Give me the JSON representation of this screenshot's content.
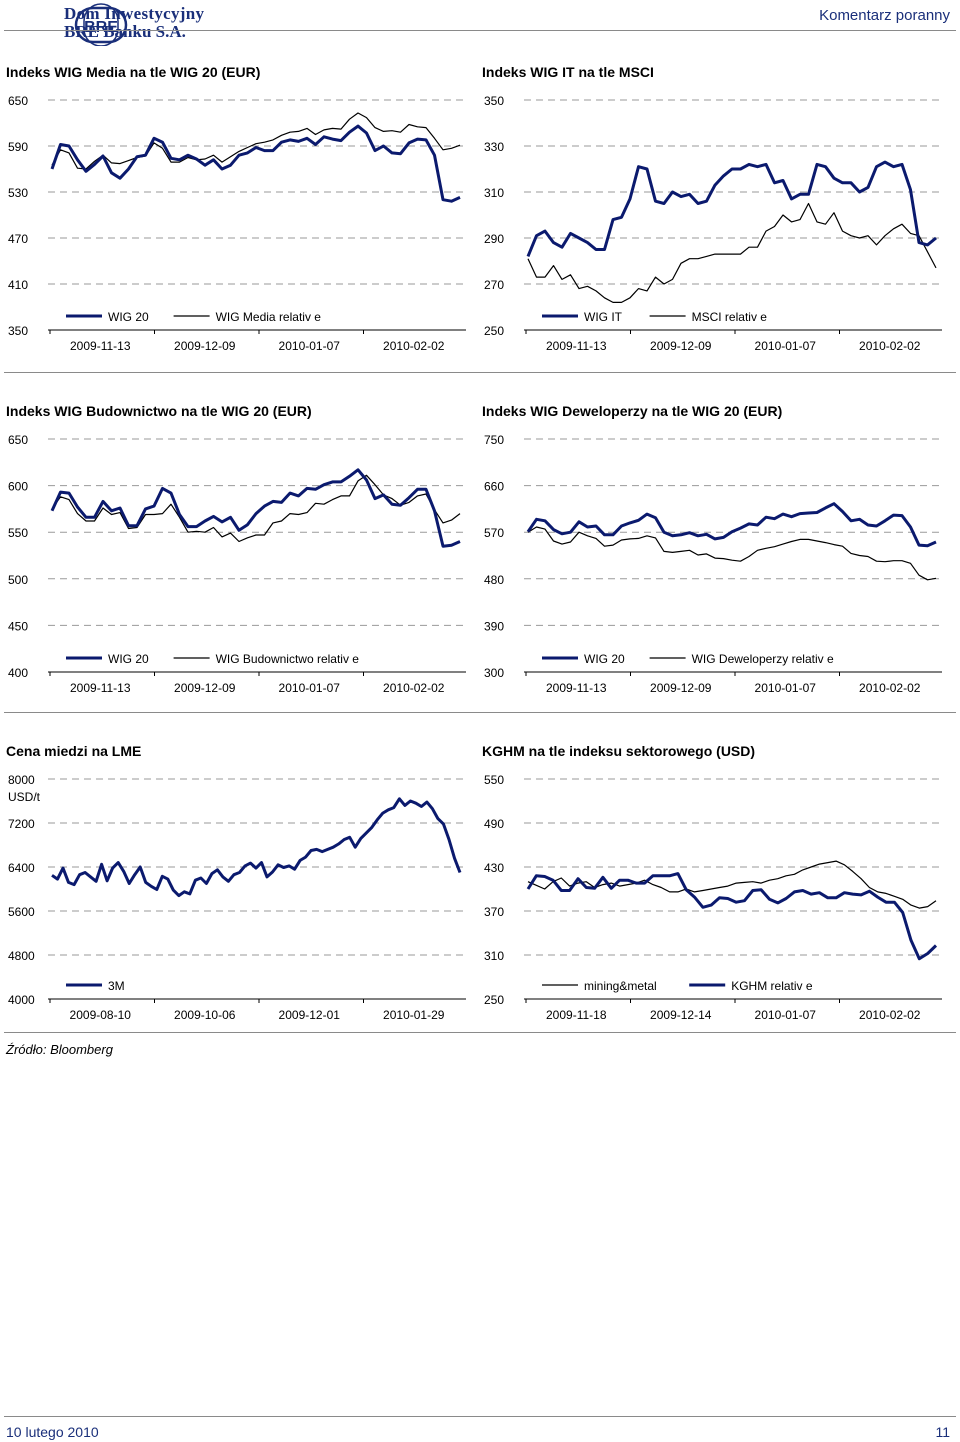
{
  "header": {
    "logo_text": "BRE",
    "brand_line1": "Dom Inwestycyjny",
    "brand_line2": "BRE Banku S.A.",
    "doc_type": "Komentarz poranny"
  },
  "colors": {
    "primary": "#0b1a6e",
    "secondary": "#000000",
    "brand": "#1a2f7a",
    "grid": "#9a9a9a"
  },
  "charts": [
    {
      "id": "wig-media",
      "title": "Indeks WIG Media na tle WIG 20 (EUR)",
      "type": "line",
      "y_ticks": [
        "650",
        "590",
        "530",
        "470",
        "410",
        "350"
      ],
      "ylim": [
        350,
        650
      ],
      "x_ticks": [
        "2009-11-13",
        "2009-12-09",
        "2010-01-07",
        "2010-02-02"
      ],
      "unit": "",
      "series": [
        {
          "name": "WIG 20",
          "style": "primary",
          "values": [
            560,
            592,
            590,
            572,
            557,
            566,
            577,
            555,
            548,
            560,
            576,
            578,
            600,
            595,
            574,
            572,
            578,
            573,
            565,
            572,
            560,
            565,
            578,
            581,
            588,
            584,
            584,
            595,
            598,
            596,
            600,
            592,
            602,
            599,
            597,
            608,
            616,
            607,
            584,
            590,
            581,
            580,
            594,
            599,
            598,
            578,
            520,
            518,
            523
          ]
        },
        {
          "name": "WIG Media relativ e",
          "style": "secondary",
          "values": [
            565,
            585,
            581,
            561,
            560,
            570,
            578,
            568,
            567,
            571,
            575,
            577,
            594,
            587,
            569,
            569,
            575,
            572,
            573,
            578,
            569,
            576,
            583,
            588,
            593,
            595,
            598,
            604,
            608,
            609,
            613,
            605,
            611,
            613,
            612,
            625,
            633,
            627,
            614,
            609,
            610,
            608,
            618,
            615,
            614,
            600,
            585,
            587,
            591
          ]
        }
      ]
    },
    {
      "id": "wig-it",
      "title": "Indeks WIG IT na tle MSCI",
      "type": "line",
      "y_ticks": [
        "350",
        "330",
        "310",
        "290",
        "270",
        "250"
      ],
      "ylim": [
        250,
        350
      ],
      "x_ticks": [
        "2009-11-13",
        "2009-12-09",
        "2010-01-07",
        "2010-02-02"
      ],
      "unit": "",
      "series": [
        {
          "name": "WIG IT",
          "style": "primary",
          "values": [
            282,
            291,
            293,
            288,
            286,
            292,
            290,
            288,
            285,
            285,
            298,
            299,
            307,
            321,
            320,
            306,
            305,
            310,
            308,
            309,
            305,
            306,
            313,
            317,
            320,
            320,
            322,
            321,
            322,
            314,
            315,
            307,
            309,
            309,
            322,
            321,
            316,
            314,
            314,
            310,
            312,
            321,
            323,
            321,
            322,
            311,
            288,
            287,
            290
          ]
        },
        {
          "name": "MSCI relativ e",
          "style": "secondary",
          "values": [
            281,
            273,
            273,
            278,
            272,
            274,
            268,
            269,
            267,
            264,
            262,
            262,
            264,
            268,
            267,
            273,
            270,
            272,
            279,
            281,
            281,
            282,
            283,
            283,
            283,
            283,
            286,
            286,
            293,
            295,
            300,
            297,
            298,
            305,
            297,
            296,
            301,
            293,
            291,
            290,
            291,
            287,
            291,
            294,
            296,
            292,
            291,
            284,
            277
          ]
        }
      ]
    },
    {
      "id": "wig-budownictwo",
      "title": "Indeks WIG Budownictwo na tle WIG 20 (EUR)",
      "type": "line",
      "y_ticks": [
        "650",
        "600",
        "550",
        "500",
        "450",
        "400"
      ],
      "ylim": [
        400,
        650
      ],
      "x_ticks": [
        "2009-11-13",
        "2009-12-09",
        "2010-01-07",
        "2010-02-02"
      ],
      "unit": "",
      "series": [
        {
          "name": "WIG 20",
          "style": "primary",
          "values": [
            573,
            593,
            592,
            577,
            566,
            566,
            583,
            573,
            576,
            557,
            557,
            575,
            578,
            597,
            592,
            569,
            556,
            556,
            562,
            567,
            561,
            566,
            552,
            558,
            570,
            578,
            583,
            582,
            592,
            589,
            597,
            596,
            601,
            604,
            604,
            610,
            617,
            606,
            586,
            590,
            580,
            579,
            587,
            596,
            596,
            573,
            535,
            536,
            540
          ]
        },
        {
          "name": "WIG Budownictwo relativ e",
          "style": "secondary",
          "values": [
            575,
            588,
            585,
            570,
            562,
            562,
            576,
            569,
            571,
            554,
            555,
            569,
            569,
            570,
            580,
            566,
            550,
            551,
            550,
            555,
            545,
            549,
            540,
            544,
            547,
            547,
            560,
            562,
            570,
            569,
            571,
            581,
            580,
            585,
            589,
            589,
            605,
            611,
            601,
            590,
            586,
            579,
            582,
            589,
            591,
            574,
            560,
            563,
            570
          ]
        }
      ]
    },
    {
      "id": "wig-deweloperzy",
      "title": "Indeks WIG Deweloperzy na tle WIG 20 (EUR)",
      "type": "line",
      "y_ticks": [
        "750",
        "660",
        "570",
        "480",
        "390",
        "300"
      ],
      "ylim": [
        300,
        750
      ],
      "x_ticks": [
        "2009-11-13",
        "2009-12-09",
        "2010-01-07",
        "2010-02-02"
      ],
      "unit": "",
      "series": [
        {
          "name": "WIG 20",
          "style": "primary",
          "values": [
            571,
            595,
            592,
            575,
            567,
            570,
            590,
            580,
            582,
            565,
            565,
            582,
            588,
            593,
            605,
            598,
            570,
            563,
            565,
            569,
            563,
            566,
            557,
            560,
            571,
            578,
            586,
            584,
            599,
            596,
            605,
            600,
            606,
            607,
            608,
            617,
            625,
            610,
            592,
            595,
            584,
            582,
            592,
            603,
            602,
            580,
            545,
            544,
            551
          ]
        },
        {
          "name": "WIG Deweloperzy relativ e",
          "style": "secondary",
          "values": [
            570,
            580,
            576,
            553,
            547,
            551,
            570,
            563,
            558,
            543,
            545,
            555,
            557,
            558,
            563,
            559,
            533,
            531,
            533,
            535,
            526,
            528,
            520,
            519,
            516,
            514,
            523,
            535,
            539,
            542,
            547,
            552,
            556,
            556,
            553,
            550,
            546,
            543,
            529,
            525,
            523,
            514,
            513,
            515,
            515,
            510,
            487,
            478,
            481
          ]
        }
      ]
    },
    {
      "id": "cena-miedzi",
      "title": "Cena miedzi na LME",
      "type": "line",
      "y_ticks": [
        "8000",
        "7200",
        "6400",
        "5600",
        "4800",
        "4000"
      ],
      "ylim": [
        4000,
        8000
      ],
      "x_ticks": [
        "2009-08-10",
        "2009-10-06",
        "2009-12-01",
        "2010-01-29"
      ],
      "unit": "USD/t",
      "series": [
        {
          "name": "3M",
          "style": "primary",
          "values": [
            6250,
            6180,
            6380,
            6120,
            6080,
            6260,
            6300,
            6220,
            6140,
            6450,
            6150,
            6380,
            6480,
            6320,
            6100,
            6260,
            6400,
            6120,
            6050,
            5990,
            6230,
            6180,
            5980,
            5880,
            5950,
            5910,
            6160,
            6200,
            6100,
            6280,
            6350,
            6220,
            6140,
            6260,
            6300,
            6420,
            6470,
            6380,
            6480,
            6220,
            6310,
            6440,
            6390,
            6420,
            6360,
            6520,
            6580,
            6700,
            6720,
            6680,
            6720,
            6760,
            6820,
            6900,
            6940,
            6760,
            6920,
            7020,
            7120,
            7260,
            7380,
            7440,
            7480,
            7640,
            7520,
            7600,
            7560,
            7500,
            7580,
            7460,
            7280,
            7180,
            6900,
            6560,
            6300
          ]
        }
      ]
    },
    {
      "id": "kghm",
      "title": "KGHM na tle indeksu sektorowego (USD)",
      "type": "line",
      "y_ticks": [
        "550",
        "490",
        "430",
        "370",
        "310",
        "250"
      ],
      "ylim": [
        250,
        550
      ],
      "x_ticks": [
        "2009-11-18",
        "2009-12-14",
        "2010-01-07",
        "2010-02-02"
      ],
      "unit": "",
      "series": [
        {
          "name": "mining&metal",
          "style": "secondary",
          "values": [
            410,
            405,
            400,
            410,
            415,
            404,
            408,
            410,
            402,
            406,
            408,
            404,
            406,
            408,
            412,
            406,
            402,
            396,
            396,
            400,
            396,
            398,
            400,
            402,
            404,
            408,
            409,
            410,
            408,
            412,
            414,
            418,
            420,
            426,
            430,
            434,
            436,
            438,
            433,
            424,
            414,
            402,
            396,
            394,
            390,
            386,
            378,
            374,
            376,
            384
          ]
        },
        {
          "name": "KGHM relativ e",
          "style": "primary",
          "values": [
            400,
            418,
            417,
            412,
            398,
            398,
            414,
            402,
            401,
            416,
            401,
            412,
            412,
            408,
            408,
            418,
            418,
            418,
            421,
            399,
            389,
            375,
            378,
            388,
            387,
            382,
            384,
            398,
            399,
            386,
            381,
            387,
            396,
            398,
            393,
            395,
            388,
            388,
            395,
            393,
            392,
            397,
            389,
            382,
            382,
            368,
            330,
            305,
            312,
            323
          ]
        }
      ]
    }
  ],
  "source": "Źródło: Bloomberg",
  "footer": {
    "date": "10 lutego 2010",
    "page": "11"
  }
}
